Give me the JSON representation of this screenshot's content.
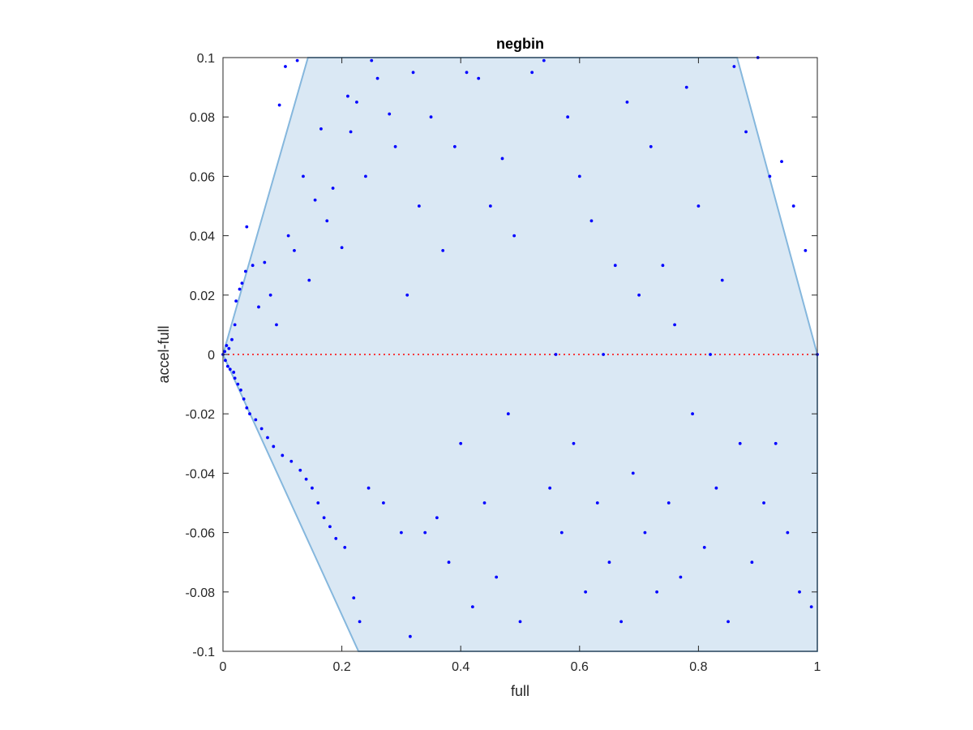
{
  "chart_data": {
    "type": "scatter",
    "title": "negbin",
    "xlabel": "full",
    "ylabel": "accel-full",
    "xlim": [
      0,
      1
    ],
    "ylim": [
      -0.1,
      0.1
    ],
    "x_ticks": [
      "0",
      "0.2",
      "0.4",
      "0.6",
      "0.8",
      "1"
    ],
    "y_ticks": [
      "-0.1",
      "-0.08",
      "-0.06",
      "-0.04",
      "-0.02",
      "0",
      "0.02",
      "0.04",
      "0.06",
      "0.08",
      "0.1"
    ],
    "x_tick_values": [
      0,
      0.2,
      0.4,
      0.6,
      0.8,
      1
    ],
    "y_tick_values": [
      -0.1,
      -0.08,
      -0.06,
      -0.04,
      -0.02,
      0,
      0.02,
      0.04,
      0.06,
      0.08,
      0.1
    ],
    "grid": false,
    "reference_line": {
      "y": 0,
      "style": "dotted",
      "color": "#ff0000"
    },
    "feasible_region": {
      "fill_color": "#dae8f4",
      "edge_color": "#85b7dd",
      "polygon": [
        [
          0,
          0
        ],
        [
          0.143,
          0.1
        ],
        [
          0.865,
          0.1
        ],
        [
          1,
          0
        ],
        [
          1,
          -0.1
        ],
        [
          0.228,
          -0.1
        ]
      ]
    },
    "series": [
      {
        "color": "#0000ff",
        "points": [
          [
            0.0,
            0.0
          ],
          [
            0.003,
            0.001
          ],
          [
            0.004,
            -0.002
          ],
          [
            0.006,
            0.003
          ],
          [
            0.008,
            -0.004
          ],
          [
            0.01,
            0.002
          ],
          [
            0.012,
            -0.005
          ],
          [
            0.015,
            0.005
          ],
          [
            0.018,
            -0.006
          ],
          [
            0.02,
            0.01
          ],
          [
            0.02,
            -0.008
          ],
          [
            0.022,
            0.018
          ],
          [
            0.025,
            -0.01
          ],
          [
            0.028,
            0.022
          ],
          [
            0.03,
            -0.012
          ],
          [
            0.032,
            0.024
          ],
          [
            0.035,
            -0.015
          ],
          [
            0.038,
            0.028
          ],
          [
            0.04,
            -0.018
          ],
          [
            0.04,
            0.043
          ],
          [
            0.045,
            -0.02
          ],
          [
            0.05,
            0.03
          ],
          [
            0.055,
            -0.022
          ],
          [
            0.06,
            0.016
          ],
          [
            0.065,
            -0.025
          ],
          [
            0.07,
            0.031
          ],
          [
            0.075,
            -0.028
          ],
          [
            0.08,
            0.02
          ],
          [
            0.085,
            -0.031
          ],
          [
            0.09,
            0.01
          ],
          [
            0.095,
            0.084
          ],
          [
            0.1,
            -0.034
          ],
          [
            0.105,
            0.097
          ],
          [
            0.11,
            0.04
          ],
          [
            0.115,
            -0.036
          ],
          [
            0.12,
            0.035
          ],
          [
            0.125,
            0.099
          ],
          [
            0.13,
            -0.039
          ],
          [
            0.135,
            0.06
          ],
          [
            0.14,
            -0.042
          ],
          [
            0.145,
            0.025
          ],
          [
            0.15,
            -0.045
          ],
          [
            0.155,
            0.052
          ],
          [
            0.16,
            -0.05
          ],
          [
            0.165,
            0.076
          ],
          [
            0.17,
            -0.055
          ],
          [
            0.175,
            0.045
          ],
          [
            0.18,
            -0.058
          ],
          [
            0.185,
            0.056
          ],
          [
            0.19,
            -0.062
          ],
          [
            0.2,
            0.036
          ],
          [
            0.205,
            -0.065
          ],
          [
            0.21,
            0.087
          ],
          [
            0.215,
            0.075
          ],
          [
            0.22,
            -0.082
          ],
          [
            0.225,
            0.085
          ],
          [
            0.23,
            -0.09
          ],
          [
            0.24,
            0.06
          ],
          [
            0.245,
            -0.045
          ],
          [
            0.25,
            0.099
          ],
          [
            0.26,
            0.093
          ],
          [
            0.27,
            -0.05
          ],
          [
            0.28,
            0.081
          ],
          [
            0.29,
            0.07
          ],
          [
            0.3,
            -0.06
          ],
          [
            0.31,
            0.02
          ],
          [
            0.315,
            -0.095
          ],
          [
            0.32,
            0.095
          ],
          [
            0.33,
            0.05
          ],
          [
            0.34,
            -0.06
          ],
          [
            0.35,
            0.08
          ],
          [
            0.36,
            -0.055
          ],
          [
            0.37,
            0.035
          ],
          [
            0.38,
            -0.07
          ],
          [
            0.39,
            0.07
          ],
          [
            0.4,
            -0.03
          ],
          [
            0.41,
            0.095
          ],
          [
            0.42,
            -0.085
          ],
          [
            0.43,
            0.093
          ],
          [
            0.44,
            -0.05
          ],
          [
            0.45,
            0.05
          ],
          [
            0.46,
            -0.075
          ],
          [
            0.47,
            0.066
          ],
          [
            0.48,
            -0.02
          ],
          [
            0.49,
            0.04
          ],
          [
            0.5,
            -0.09
          ],
          [
            0.52,
            0.095
          ],
          [
            0.54,
            0.099
          ],
          [
            0.55,
            -0.045
          ],
          [
            0.56,
            0.0
          ],
          [
            0.57,
            -0.06
          ],
          [
            0.58,
            0.08
          ],
          [
            0.59,
            -0.03
          ],
          [
            0.6,
            0.06
          ],
          [
            0.61,
            -0.08
          ],
          [
            0.62,
            0.045
          ],
          [
            0.63,
            -0.05
          ],
          [
            0.64,
            0.0
          ],
          [
            0.65,
            -0.07
          ],
          [
            0.66,
            0.03
          ],
          [
            0.67,
            -0.09
          ],
          [
            0.68,
            0.085
          ],
          [
            0.69,
            -0.04
          ],
          [
            0.7,
            0.02
          ],
          [
            0.71,
            -0.06
          ],
          [
            0.72,
            0.07
          ],
          [
            0.73,
            -0.08
          ],
          [
            0.74,
            0.03
          ],
          [
            0.75,
            -0.05
          ],
          [
            0.76,
            0.01
          ],
          [
            0.77,
            -0.075
          ],
          [
            0.78,
            0.09
          ],
          [
            0.79,
            -0.02
          ],
          [
            0.8,
            0.05
          ],
          [
            0.81,
            -0.065
          ],
          [
            0.82,
            0.0
          ],
          [
            0.83,
            -0.045
          ],
          [
            0.84,
            0.025
          ],
          [
            0.85,
            -0.09
          ],
          [
            0.86,
            0.097
          ],
          [
            0.87,
            -0.03
          ],
          [
            0.88,
            0.075
          ],
          [
            0.89,
            -0.07
          ],
          [
            0.9,
            0.1
          ],
          [
            0.91,
            -0.05
          ],
          [
            0.92,
            0.06
          ],
          [
            0.93,
            -0.03
          ],
          [
            0.94,
            0.065
          ],
          [
            0.95,
            -0.06
          ],
          [
            0.96,
            0.05
          ],
          [
            0.97,
            -0.08
          ],
          [
            0.98,
            0.035
          ],
          [
            0.99,
            -0.085
          ],
          [
            1.0,
            0.0
          ]
        ]
      }
    ]
  }
}
